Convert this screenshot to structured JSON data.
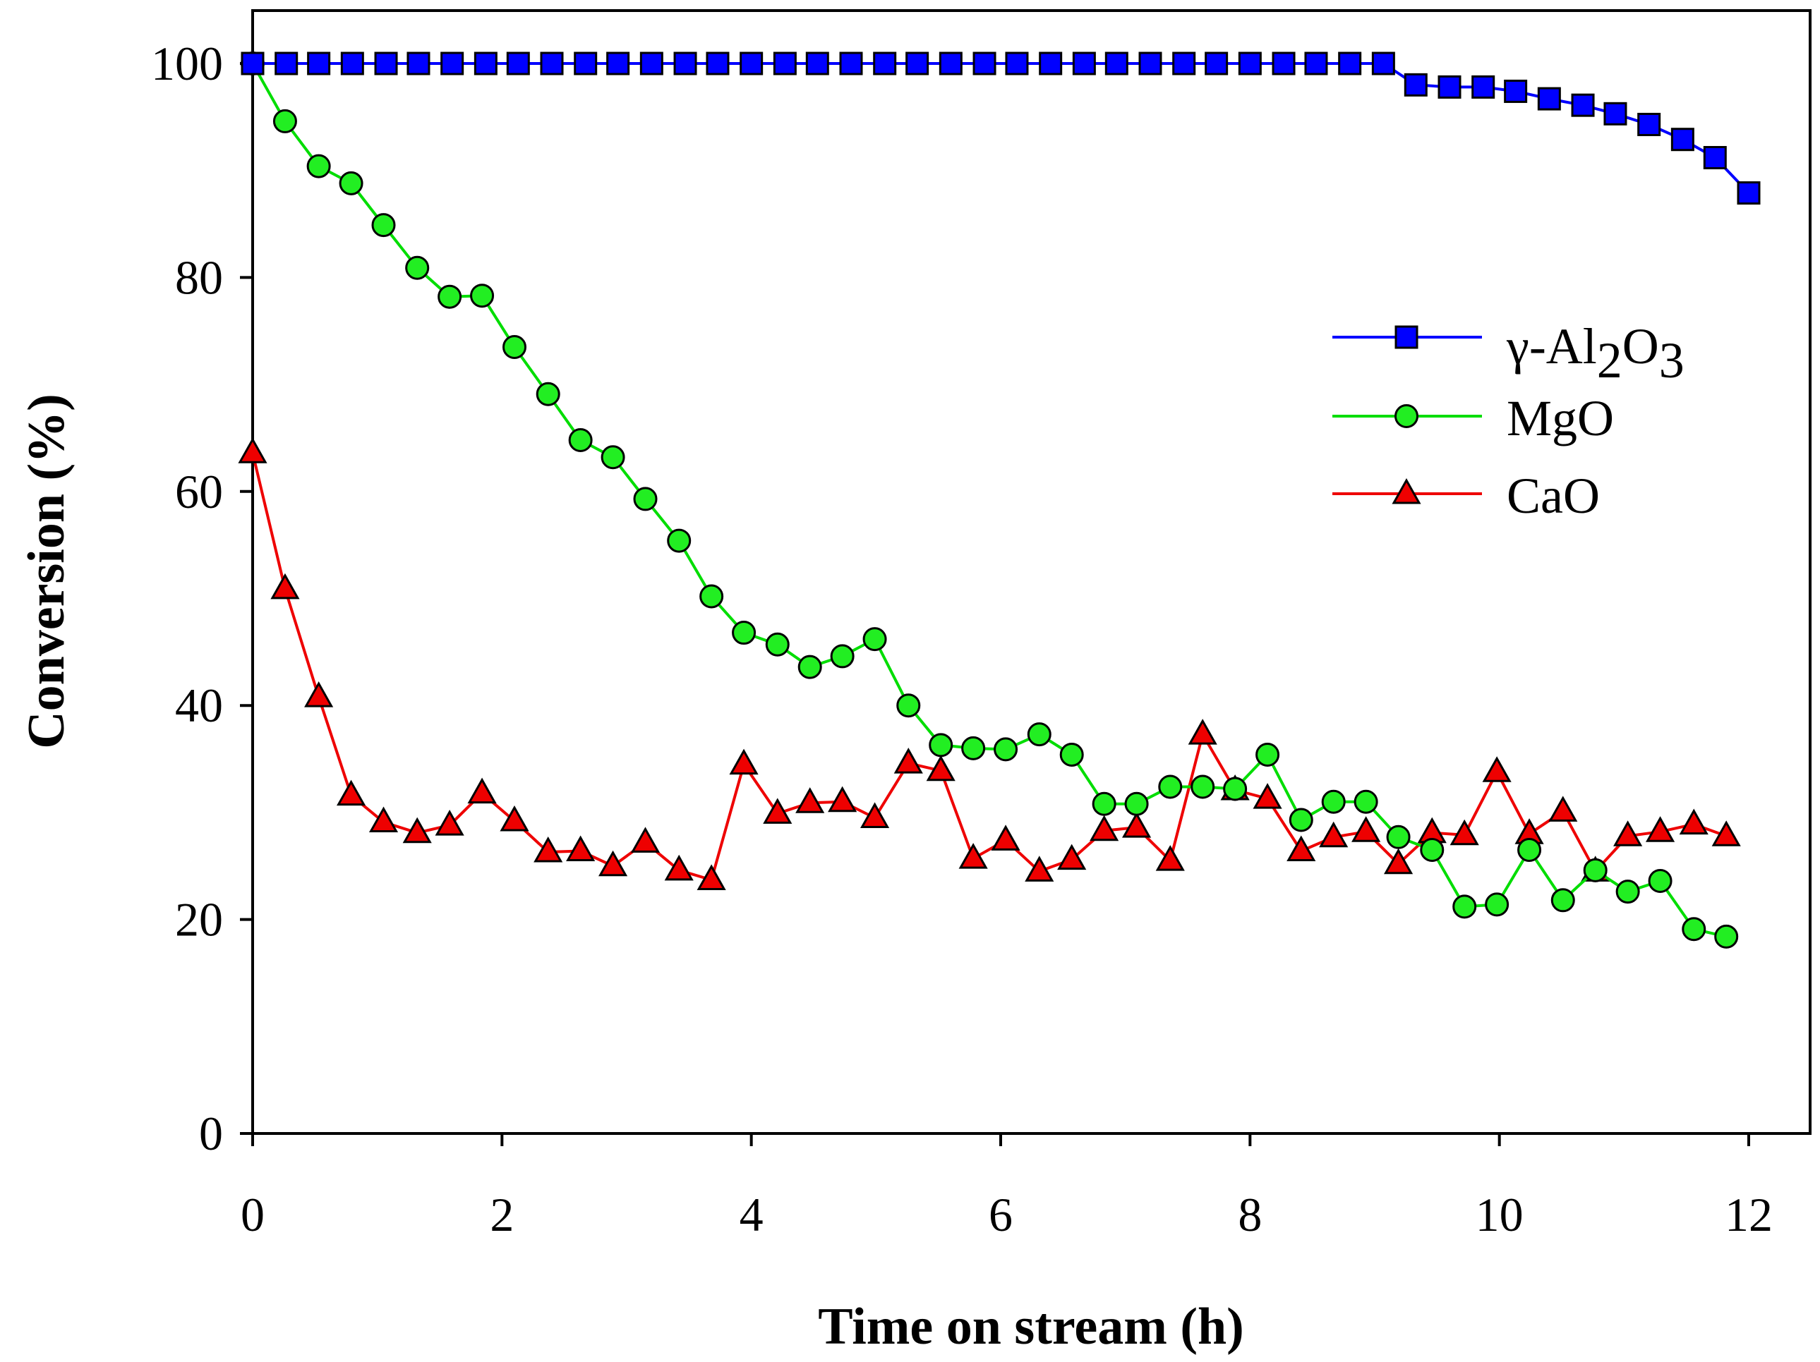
{
  "chart_data": {
    "type": "line",
    "xlabel": "Time on stream (h)",
    "ylabel": "Conversion (%)",
    "xlim": [
      0,
      12
    ],
    "ylim": [
      0,
      100
    ],
    "xticks": [
      0,
      2,
      4,
      6,
      8,
      10,
      12
    ],
    "yticks": [
      0,
      20,
      40,
      60,
      80,
      100
    ],
    "grid": false,
    "legend_position": "upper-right",
    "series": [
      {
        "name": "γ-Al2O3",
        "legend_label": {
          "prefix": "γ-Al",
          "sub1": "2",
          "mid": "O",
          "sub2": "3"
        },
        "color": "#0000ff",
        "marker_fill": "#0000ff",
        "marker": "square",
        "x": [
          0,
          0.27,
          0.53,
          0.8,
          1.07,
          1.33,
          1.6,
          1.87,
          2.13,
          2.4,
          2.67,
          2.93,
          3.2,
          3.47,
          3.73,
          4.0,
          4.27,
          4.53,
          4.8,
          5.07,
          5.33,
          5.6,
          5.87,
          6.13,
          6.4,
          6.67,
          6.93,
          7.2,
          7.47,
          7.73,
          8.0,
          8.27,
          8.53,
          8.8,
          9.07,
          9.33,
          9.6,
          9.87,
          10.13,
          10.4,
          10.67,
          10.93,
          11.2,
          11.47,
          11.73,
          12.0
        ],
        "y": [
          100,
          100,
          100,
          100,
          100,
          100,
          100,
          100,
          100,
          100,
          100,
          100,
          100,
          100,
          100,
          100,
          100,
          100,
          100,
          100,
          100,
          100,
          100,
          100,
          100,
          100,
          100,
          100,
          100,
          100,
          100,
          100,
          100,
          100,
          100,
          98,
          97.8,
          97.8,
          97.4,
          96.7,
          96.1,
          95.3,
          94.3,
          92.9,
          91.2,
          87.9
        ]
      },
      {
        "name": "MgO",
        "color": "#00dd00",
        "marker_fill": "#22ee22",
        "marker": "circle",
        "x": [
          0,
          0.26,
          0.53,
          0.79,
          1.05,
          1.32,
          1.58,
          1.84,
          2.1,
          2.37,
          2.63,
          2.89,
          3.15,
          3.42,
          3.68,
          3.94,
          4.21,
          4.47,
          4.73,
          4.99,
          5.26,
          5.52,
          5.78,
          6.04,
          6.31,
          6.57,
          6.83,
          7.09,
          7.36,
          7.62,
          7.88,
          8.14,
          8.41,
          8.67,
          8.93,
          9.19,
          9.46,
          9.72,
          9.98,
          10.24,
          10.51,
          10.77,
          11.03,
          11.29,
          11.56,
          11.82
        ],
        "y": [
          100,
          94.6,
          90.4,
          88.8,
          84.9,
          80.9,
          78.2,
          78.3,
          73.5,
          69.1,
          64.8,
          63.2,
          59.3,
          55.4,
          50.2,
          46.8,
          45.7,
          43.6,
          44.6,
          46.2,
          40,
          36.3,
          36,
          35.9,
          37.3,
          35.4,
          30.8,
          30.8,
          32.4,
          32.4,
          32.2,
          35.4,
          29.3,
          31,
          31,
          27.7,
          26.5,
          21.2,
          21.4,
          26.5,
          21.8,
          24.6,
          22.6,
          23.6,
          19.1,
          18.4
        ]
      },
      {
        "name": "CaO",
        "color": "#ee0000",
        "marker_fill": "#ee0000",
        "marker": "triangle",
        "x": [
          0,
          0.26,
          0.53,
          0.79,
          1.05,
          1.32,
          1.58,
          1.84,
          2.1,
          2.37,
          2.63,
          2.89,
          3.15,
          3.42,
          3.68,
          3.94,
          4.21,
          4.47,
          4.73,
          4.99,
          5.26,
          5.52,
          5.78,
          6.04,
          6.31,
          6.57,
          6.83,
          7.09,
          7.36,
          7.62,
          7.88,
          8.14,
          8.41,
          8.67,
          8.93,
          9.19,
          9.46,
          9.72,
          9.98,
          10.24,
          10.51,
          10.77,
          11.03,
          11.29,
          11.56,
          11.82
        ],
        "y": [
          63.6,
          50.9,
          40.8,
          31.6,
          29.1,
          28.1,
          28.8,
          31.8,
          29.2,
          26.3,
          26.4,
          25,
          27.2,
          24.6,
          23.7,
          34.5,
          29.9,
          30.9,
          31,
          29.5,
          34.6,
          33.9,
          25.7,
          27.4,
          24.5,
          25.6,
          28.3,
          28.6,
          25.5,
          37.3,
          32.1,
          31.3,
          26.4,
          27.7,
          28.2,
          25.2,
          28.1,
          27.9,
          33.8,
          28,
          30.1,
          24.5,
          27.8,
          28.2,
          28.9,
          27.8
        ]
      }
    ]
  }
}
